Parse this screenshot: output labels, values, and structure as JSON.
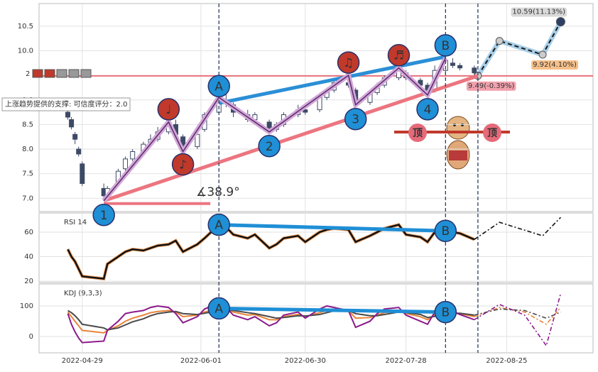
{
  "chart_data": [
    {
      "type": "candlestick",
      "x": [
        "2022-04-25",
        "2022-04-26",
        "2022-04-27",
        "2022-04-28",
        "2022-04-29",
        "2022-05-05",
        "2022-05-06",
        "2022-05-09",
        "2022-05-11",
        "2022-05-13",
        "2022-05-16",
        "2022-05-18",
        "2022-05-20",
        "2022-05-23",
        "2022-05-25",
        "2022-05-27",
        "2022-05-31",
        "2022-06-02",
        "2022-06-06",
        "2022-06-08",
        "2022-06-10",
        "2022-06-14",
        "2022-06-16",
        "2022-06-20",
        "2022-06-22",
        "2022-06-24",
        "2022-06-28",
        "2022-06-30",
        "2022-07-04",
        "2022-07-06",
        "2022-07-08",
        "2022-07-12",
        "2022-07-14",
        "2022-07-18",
        "2022-07-20",
        "2022-07-22",
        "2022-07-26",
        "2022-07-28",
        "2022-08-01",
        "2022-08-03",
        "2022-08-05",
        "2022-08-08",
        "2022-08-10",
        "2022-08-12",
        "2022-08-16"
      ],
      "open": [
        8.75,
        8.6,
        8.3,
        8.0,
        7.7,
        7.2,
        7.05,
        7.3,
        7.6,
        7.8,
        7.95,
        8.1,
        8.2,
        8.35,
        8.5,
        8.25,
        8.05,
        8.4,
        8.75,
        9.0,
        8.9,
        8.7,
        8.6,
        8.55,
        8.4,
        8.5,
        8.7,
        8.8,
        8.8,
        9.05,
        9.2,
        9.35,
        9.2,
        8.95,
        9.15,
        9.3,
        9.45,
        9.55,
        9.4,
        9.3,
        9.2,
        9.6,
        9.75,
        9.7,
        9.65
      ],
      "close": [
        8.65,
        8.45,
        8.2,
        7.9,
        7.3,
        7.05,
        7.2,
        7.55,
        7.8,
        7.95,
        8.1,
        8.2,
        8.35,
        8.5,
        8.3,
        8.0,
        8.3,
        8.7,
        9.0,
        8.95,
        8.75,
        8.6,
        8.7,
        8.4,
        8.5,
        8.7,
        8.8,
        8.75,
        9.05,
        9.2,
        9.35,
        9.3,
        8.95,
        9.15,
        9.3,
        9.45,
        9.6,
        9.45,
        9.3,
        9.15,
        9.6,
        9.8,
        9.7,
        9.65,
        9.55
      ],
      "high": [
        8.8,
        8.65,
        8.35,
        8.05,
        7.75,
        7.3,
        7.25,
        7.6,
        7.85,
        8.0,
        8.15,
        8.3,
        8.45,
        8.55,
        8.6,
        8.3,
        8.35,
        8.75,
        9.05,
        9.15,
        8.95,
        8.8,
        8.75,
        8.6,
        8.55,
        8.75,
        8.9,
        8.85,
        9.1,
        9.25,
        9.45,
        9.5,
        9.25,
        9.2,
        9.35,
        9.5,
        9.65,
        9.6,
        9.45,
        9.35,
        9.7,
        9.85,
        9.85,
        9.75,
        9.7
      ],
      "low": [
        8.6,
        8.4,
        8.1,
        7.85,
        7.25,
        6.95,
        7.0,
        7.25,
        7.55,
        7.75,
        7.9,
        8.05,
        8.15,
        8.3,
        8.25,
        7.95,
        8.0,
        8.35,
        8.7,
        8.85,
        8.65,
        8.55,
        8.5,
        8.35,
        8.35,
        8.45,
        8.65,
        8.7,
        8.75,
        9.0,
        9.15,
        9.25,
        8.9,
        8.9,
        9.1,
        9.25,
        9.4,
        9.4,
        9.25,
        9.1,
        9.15,
        9.55,
        9.65,
        9.6,
        9.5
      ],
      "up_color": "#ffffff",
      "down_color": "#3d4a66",
      "xlim": [
        "2022-04-17",
        "2022-09-18"
      ],
      "ylim": [
        6.73,
        10.96
      ],
      "yticks": [
        {
          "value": 7.0,
          "label": "7.0"
        },
        {
          "value": 7.5,
          "label": "7.5"
        },
        {
          "value": 8.0,
          "label": "8.0"
        },
        {
          "value": 8.5,
          "label": "8.5"
        },
        {
          "value": 9.0,
          "label": "9.0"
        },
        {
          "value": 10.0,
          "label": "10.0"
        },
        {
          "value": 10.5,
          "label": "10.5"
        }
      ],
      "grid": true,
      "forecast": {
        "x": [
          "2022-08-17",
          "2022-08-23",
          "2022-09-04",
          "2022-09-09"
        ],
        "values": [
          9.49,
          10.2,
          9.92,
          10.59
        ],
        "value_labels": [
          "9.49(-0.39%)",
          null,
          "9.92(4.10%)",
          "10.59(11.13%)"
        ],
        "color": "#1a1a1a"
      },
      "annotations": {
        "waves": [
          "1",
          "2",
          "3",
          "4"
        ],
        "points": [
          "A",
          "B"
        ],
        "notes": [
          "♩",
          "♪",
          "♫",
          "♬"
        ],
        "angle": "∡38.9°",
        "support": "上涨趋势提供的支撑: 可信度评分：2.0",
        "level": "2",
        "top": [
          "顶",
          "顶"
        ]
      }
    },
    {
      "type": "line",
      "title": "RSI 14",
      "x": [
        "2022-04-25",
        "2022-04-26",
        "2022-04-27",
        "2022-04-28",
        "2022-04-29",
        "2022-05-05",
        "2022-05-06",
        "2022-05-09",
        "2022-05-11",
        "2022-05-13",
        "2022-05-16",
        "2022-05-18",
        "2022-05-20",
        "2022-05-23",
        "2022-05-25",
        "2022-05-27",
        "2022-05-31",
        "2022-06-02",
        "2022-06-06",
        "2022-06-08",
        "2022-06-10",
        "2022-06-14",
        "2022-06-16",
        "2022-06-20",
        "2022-06-22",
        "2022-06-24",
        "2022-06-28",
        "2022-06-30",
        "2022-07-04",
        "2022-07-06",
        "2022-07-08",
        "2022-07-12",
        "2022-07-14",
        "2022-07-18",
        "2022-07-20",
        "2022-07-22",
        "2022-07-26",
        "2022-07-28",
        "2022-08-01",
        "2022-08-03",
        "2022-08-05",
        "2022-08-08",
        "2022-08-10",
        "2022-08-12",
        "2022-08-16"
      ],
      "series": [
        {
          "color": "#111111",
          "values": [
            46,
            40,
            36,
            30,
            24,
            22,
            34,
            40,
            44,
            46,
            45,
            47,
            49,
            50,
            53,
            44,
            50,
            55,
            66,
            64,
            58,
            55,
            58,
            47,
            50,
            55,
            57,
            52,
            60,
            62,
            63,
            62,
            52,
            57,
            60,
            63,
            66,
            58,
            56,
            52,
            60,
            61,
            60,
            59,
            54
          ]
        }
      ],
      "forecast": {
        "x": [
          "2022-08-16",
          "2022-08-23",
          "2022-09-04",
          "2022-09-09"
        ],
        "series": [
          {
            "color": "#111111",
            "values": [
              54,
              68,
              57,
              72
            ]
          }
        ]
      },
      "xlim": [
        "2022-04-17",
        "2022-09-18"
      ],
      "ylim": [
        18.9,
        75.6
      ],
      "yticks": [
        20,
        40,
        60
      ],
      "grid": true,
      "points": [
        "A",
        "B"
      ]
    },
    {
      "type": "line",
      "title": "KDJ (9,3,3)",
      "x": [
        "2022-04-25",
        "2022-04-26",
        "2022-04-27",
        "2022-04-28",
        "2022-04-29",
        "2022-05-05",
        "2022-05-06",
        "2022-05-09",
        "2022-05-11",
        "2022-05-13",
        "2022-05-16",
        "2022-05-18",
        "2022-05-20",
        "2022-05-23",
        "2022-05-25",
        "2022-05-27",
        "2022-05-31",
        "2022-06-02",
        "2022-06-06",
        "2022-06-08",
        "2022-06-10",
        "2022-06-14",
        "2022-06-16",
        "2022-06-20",
        "2022-06-22",
        "2022-06-24",
        "2022-06-28",
        "2022-06-30",
        "2022-07-04",
        "2022-07-06",
        "2022-07-08",
        "2022-07-12",
        "2022-07-14",
        "2022-07-18",
        "2022-07-20",
        "2022-07-22",
        "2022-07-26",
        "2022-07-28",
        "2022-08-01",
        "2022-08-03",
        "2022-08-05",
        "2022-08-08",
        "2022-08-10",
        "2022-08-12",
        "2022-08-16"
      ],
      "series": [
        {
          "color": "#e8833a",
          "values": [
            80,
            65,
            50,
            35,
            20,
            12,
            20,
            35,
            50,
            60,
            70,
            78,
            82,
            85,
            80,
            65,
            70,
            80,
            92,
            90,
            80,
            70,
            72,
            55,
            55,
            65,
            72,
            65,
            78,
            85,
            88,
            85,
            60,
            62,
            70,
            78,
            85,
            75,
            65,
            55,
            70,
            80,
            78,
            75,
            65
          ]
        },
        {
          "color": "#4a4a4a",
          "values": [
            85,
            78,
            68,
            55,
            40,
            28,
            22,
            28,
            38,
            48,
            58,
            68,
            75,
            80,
            82,
            75,
            72,
            76,
            85,
            88,
            85,
            78,
            75,
            65,
            60,
            62,
            68,
            67,
            72,
            78,
            84,
            85,
            75,
            68,
            68,
            72,
            80,
            78,
            72,
            62,
            66,
            74,
            76,
            76,
            70
          ]
        },
        {
          "color": "#8b1a8b",
          "values": [
            75,
            40,
            15,
            -5,
            -20,
            -15,
            20,
            50,
            75,
            80,
            85,
            95,
            100,
            95,
            75,
            45,
            65,
            90,
            110,
            95,
            70,
            55,
            65,
            35,
            45,
            70,
            80,
            60,
            90,
            100,
            95,
            85,
            30,
            50,
            75,
            90,
            95,
            70,
            50,
            40,
            80,
            90,
            82,
            72,
            55
          ]
        }
      ],
      "forecast": {
        "x": [
          "2022-08-16",
          "2022-08-23",
          "2022-08-30",
          "2022-09-05",
          "2022-09-09"
        ],
        "series": [
          {
            "color": "#e8833a",
            "values": [
              65,
              95,
              80,
              40,
              95
            ]
          },
          {
            "color": "#4a4a4a",
            "values": [
              70,
              90,
              85,
              60,
              80
            ]
          },
          {
            "color": "#8b1a8b",
            "values": [
              55,
              105,
              70,
              -30,
              140
            ]
          }
        ]
      },
      "xlim": [
        "2022-04-17",
        "2022-09-18"
      ],
      "ylim": [
        -53.5,
        172
      ],
      "yticks": [
        0,
        100
      ],
      "grid": true,
      "xticks": [
        "2022-04-29",
        "2022-06-01",
        "2022-06-30",
        "2022-07-28",
        "2022-08-25"
      ],
      "points": [
        "A",
        "B"
      ]
    }
  ]
}
